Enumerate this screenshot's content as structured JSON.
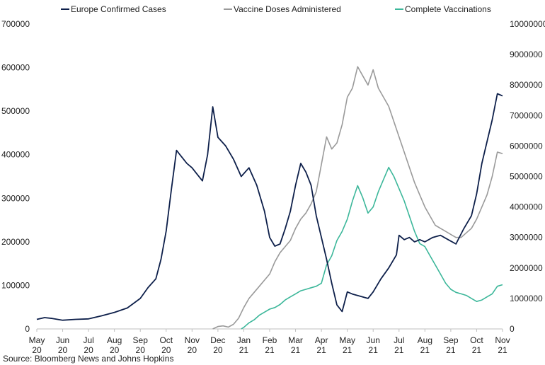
{
  "chart_data": {
    "type": "line",
    "title": "",
    "source": "Source: Bloomberg News and Johns Hopkins",
    "colors": {
      "cases": "#0d1f4a",
      "doses": "#9a9a9a",
      "complete": "#3cb79a"
    },
    "legend": [
      "Europe Confirmed Cases",
      "Vaccine Doses Administered",
      "Complete Vaccinations"
    ],
    "x_labels": [
      [
        "May",
        "20"
      ],
      [
        "Jun",
        "20"
      ],
      [
        "Jul",
        "20"
      ],
      [
        "Aug",
        "20"
      ],
      [
        "Sep",
        "20"
      ],
      [
        "Oct",
        "20"
      ],
      [
        "Nov",
        "20"
      ],
      [
        "Dec",
        "20"
      ],
      [
        "Jan",
        "21"
      ],
      [
        "Feb",
        "21"
      ],
      [
        "Mar",
        "21"
      ],
      [
        "Apr",
        "21"
      ],
      [
        "May",
        "21"
      ],
      [
        "Jun",
        "21"
      ],
      [
        "Jul",
        "21"
      ],
      [
        "Aug",
        "21"
      ],
      [
        "Sep",
        "21"
      ],
      [
        "Oct",
        "21"
      ],
      [
        "Nov",
        "21"
      ]
    ],
    "y_left": {
      "ylim": [
        0,
        700000
      ],
      "ticks": [
        "0",
        "100000",
        "200000",
        "300000",
        "400000",
        "500000",
        "600000",
        "700000"
      ]
    },
    "y_right": {
      "ylim": [
        0,
        10000000
      ],
      "ticks": [
        "0",
        "1000000",
        "2000000",
        "3000000",
        "4000000",
        "5000000",
        "6000000",
        "7000000",
        "8000000",
        "9000000",
        "10000000"
      ]
    },
    "series": [
      {
        "name": "Europe Confirmed Cases",
        "axis": "left",
        "x": [
          0,
          0.3,
          0.6,
          1.0,
          1.5,
          2.0,
          2.5,
          3.0,
          3.5,
          4.0,
          4.3,
          4.6,
          4.8,
          5.0,
          5.2,
          5.4,
          5.6,
          5.8,
          6.0,
          6.2,
          6.4,
          6.6,
          6.8,
          7.0,
          7.3,
          7.6,
          7.9,
          8.2,
          8.5,
          8.8,
          9.0,
          9.2,
          9.4,
          9.6,
          9.8,
          10.0,
          10.2,
          10.4,
          10.6,
          10.8,
          11.0,
          11.2,
          11.4,
          11.6,
          11.8,
          12.0,
          12.2,
          12.5,
          12.8,
          13.0,
          13.3,
          13.6,
          13.9,
          14.0,
          14.2,
          14.4,
          14.6,
          14.8,
          15.0,
          15.3,
          15.6,
          15.9,
          16.2,
          16.5,
          16.8,
          17.0,
          17.2,
          17.4,
          17.6,
          17.8,
          18.0
        ],
        "values": [
          22000,
          26000,
          24000,
          20000,
          22000,
          23000,
          30000,
          38000,
          48000,
          70000,
          95000,
          115000,
          160000,
          225000,
          320000,
          410000,
          395000,
          380000,
          370000,
          355000,
          340000,
          400000,
          510000,
          440000,
          420000,
          390000,
          350000,
          370000,
          330000,
          270000,
          210000,
          190000,
          195000,
          230000,
          270000,
          330000,
          380000,
          360000,
          330000,
          260000,
          210000,
          160000,
          105000,
          55000,
          40000,
          85000,
          80000,
          75000,
          70000,
          85000,
          115000,
          140000,
          170000,
          215000,
          205000,
          210000,
          200000,
          205000,
          200000,
          210000,
          215000,
          205000,
          195000,
          230000,
          260000,
          310000,
          380000,
          430000,
          480000,
          540000,
          535000
        ]
      },
      {
        "name": "Vaccine Doses Administered",
        "axis": "right",
        "x": [
          6.8,
          7.0,
          7.2,
          7.4,
          7.6,
          7.8,
          8.0,
          8.2,
          8.4,
          8.6,
          8.8,
          9.0,
          9.2,
          9.4,
          9.6,
          9.8,
          10.0,
          10.2,
          10.4,
          10.6,
          10.8,
          11.0,
          11.2,
          11.4,
          11.6,
          11.8,
          12.0,
          12.2,
          12.4,
          12.6,
          12.8,
          13.0,
          13.2,
          13.4,
          13.6,
          13.8,
          14.0,
          14.2,
          14.4,
          14.6,
          14.8,
          15.0,
          15.2,
          15.4,
          15.6,
          15.8,
          16.0,
          16.2,
          16.4,
          16.6,
          16.8,
          17.0,
          17.2,
          17.4,
          17.6,
          17.8,
          18.0
        ],
        "values": [
          0,
          80000,
          100000,
          60000,
          150000,
          350000,
          700000,
          1000000,
          1200000,
          1400000,
          1600000,
          1800000,
          2200000,
          2500000,
          2700000,
          2900000,
          3300000,
          3600000,
          3800000,
          4100000,
          4500000,
          5400000,
          6300000,
          5900000,
          6100000,
          6700000,
          7600000,
          7900000,
          8600000,
          8300000,
          8000000,
          8500000,
          7900000,
          7600000,
          7300000,
          6800000,
          6300000,
          5800000,
          5300000,
          4800000,
          4400000,
          4000000,
          3700000,
          3400000,
          3300000,
          3200000,
          3100000,
          3000000,
          3000000,
          3150000,
          3300000,
          3600000,
          4000000,
          4400000,
          5000000,
          5800000,
          5750000
        ]
      },
      {
        "name": "Complete Vaccinations",
        "axis": "right",
        "x": [
          7.9,
          8.0,
          8.2,
          8.4,
          8.6,
          8.8,
          9.0,
          9.2,
          9.4,
          9.6,
          9.8,
          10.0,
          10.2,
          10.4,
          10.6,
          10.8,
          11.0,
          11.2,
          11.4,
          11.6,
          11.8,
          12.0,
          12.2,
          12.4,
          12.6,
          12.8,
          13.0,
          13.2,
          13.4,
          13.6,
          13.8,
          14.0,
          14.2,
          14.4,
          14.6,
          14.8,
          15.0,
          15.2,
          15.4,
          15.6,
          15.8,
          16.0,
          16.2,
          16.4,
          16.6,
          16.8,
          17.0,
          17.2,
          17.4,
          17.6,
          17.8,
          18.0
        ],
        "values": [
          0,
          50000,
          200000,
          300000,
          450000,
          550000,
          650000,
          700000,
          800000,
          950000,
          1050000,
          1150000,
          1250000,
          1300000,
          1350000,
          1400000,
          1500000,
          2100000,
          2400000,
          2900000,
          3200000,
          3600000,
          4200000,
          4700000,
          4300000,
          3800000,
          4000000,
          4500000,
          4900000,
          5300000,
          5000000,
          4600000,
          4200000,
          3700000,
          3200000,
          2800000,
          2700000,
          2400000,
          2100000,
          1800000,
          1500000,
          1300000,
          1200000,
          1150000,
          1100000,
          1000000,
          900000,
          950000,
          1050000,
          1150000,
          1400000,
          1450000
        ]
      }
    ]
  }
}
